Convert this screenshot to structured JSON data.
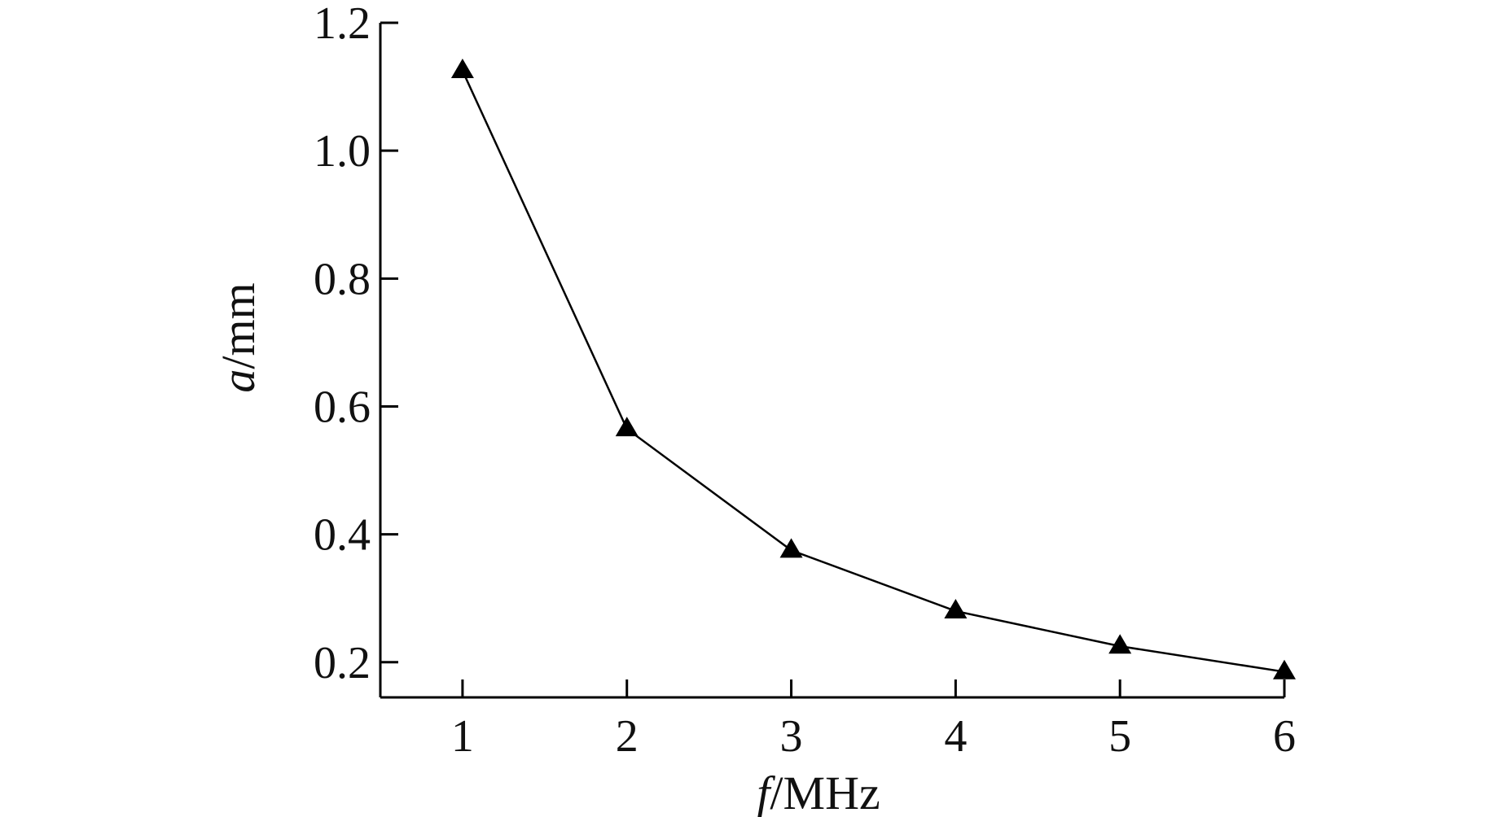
{
  "chart_data": {
    "type": "line",
    "title": "",
    "xlabel": {
      "symbol": "f",
      "unit": "/MHz"
    },
    "ylabel": {
      "symbol": "a",
      "unit": "/mm"
    },
    "xlim": [
      0.5,
      6.0
    ],
    "ylim": [
      0.145,
      1.2
    ],
    "x_ticks": [
      1,
      2,
      3,
      4,
      5,
      6
    ],
    "y_ticks": [
      0.2,
      0.4,
      0.6,
      0.8,
      1.0,
      1.2
    ],
    "x_tick_labels": [
      "1",
      "2",
      "3",
      "4",
      "5",
      "6"
    ],
    "y_tick_labels": [
      "0.2",
      "0.4",
      "0.6",
      "0.8",
      "1.0",
      "1.2"
    ],
    "grid": false,
    "series": [
      {
        "marker": "triangle",
        "color": "#000000",
        "x": [
          1,
          2,
          3,
          4,
          5,
          6
        ],
        "y": [
          1.125,
          0.565,
          0.375,
          0.28,
          0.225,
          0.185
        ]
      }
    ]
  }
}
